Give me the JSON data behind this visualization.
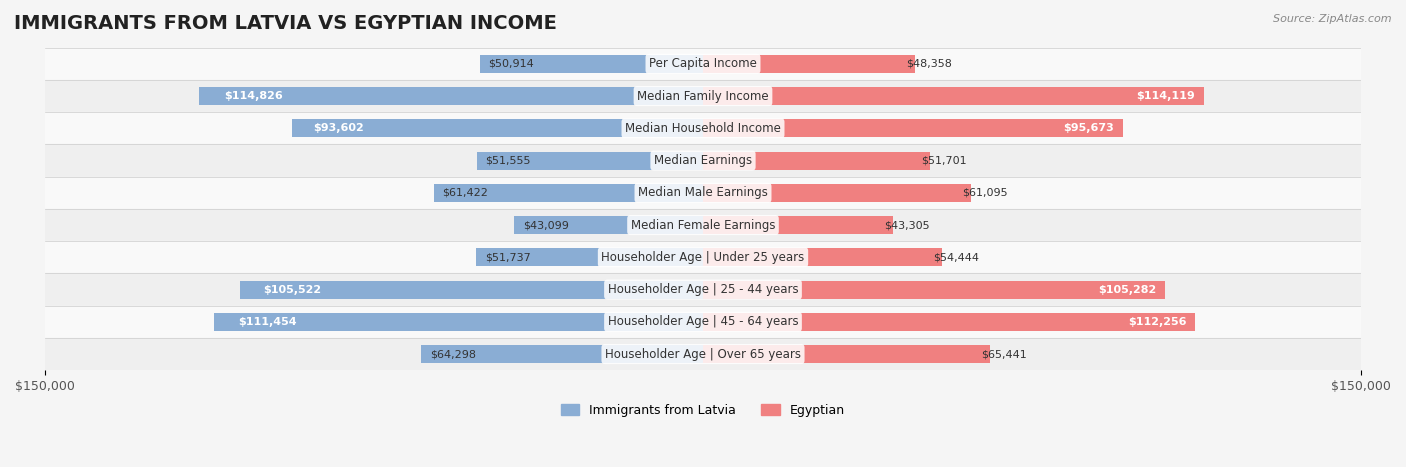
{
  "title": "IMMIGRANTS FROM LATVIA VS EGYPTIAN INCOME",
  "source": "Source: ZipAtlas.com",
  "categories": [
    "Per Capita Income",
    "Median Family Income",
    "Median Household Income",
    "Median Earnings",
    "Median Male Earnings",
    "Median Female Earnings",
    "Householder Age | Under 25 years",
    "Householder Age | 25 - 44 years",
    "Householder Age | 45 - 64 years",
    "Householder Age | Over 65 years"
  ],
  "latvia_values": [
    50914,
    114826,
    93602,
    51555,
    61422,
    43099,
    51737,
    105522,
    111454,
    64298
  ],
  "egyptian_values": [
    48358,
    114119,
    95673,
    51701,
    61095,
    43305,
    54444,
    105282,
    112256,
    65441
  ],
  "latvia_color": "#8aadd4",
  "egyptian_color": "#f08080",
  "latvia_label": "Immigrants from Latvia",
  "egyptian_label": "Egyptian",
  "bar_height": 0.35,
  "xlim": 150000,
  "background_color": "#f5f5f5",
  "row_bg_light": "#ffffff",
  "row_bg_dark": "#eeeeee",
  "title_fontsize": 14,
  "label_fontsize": 8.5,
  "value_fontsize": 8,
  "axis_label_fontsize": 9
}
